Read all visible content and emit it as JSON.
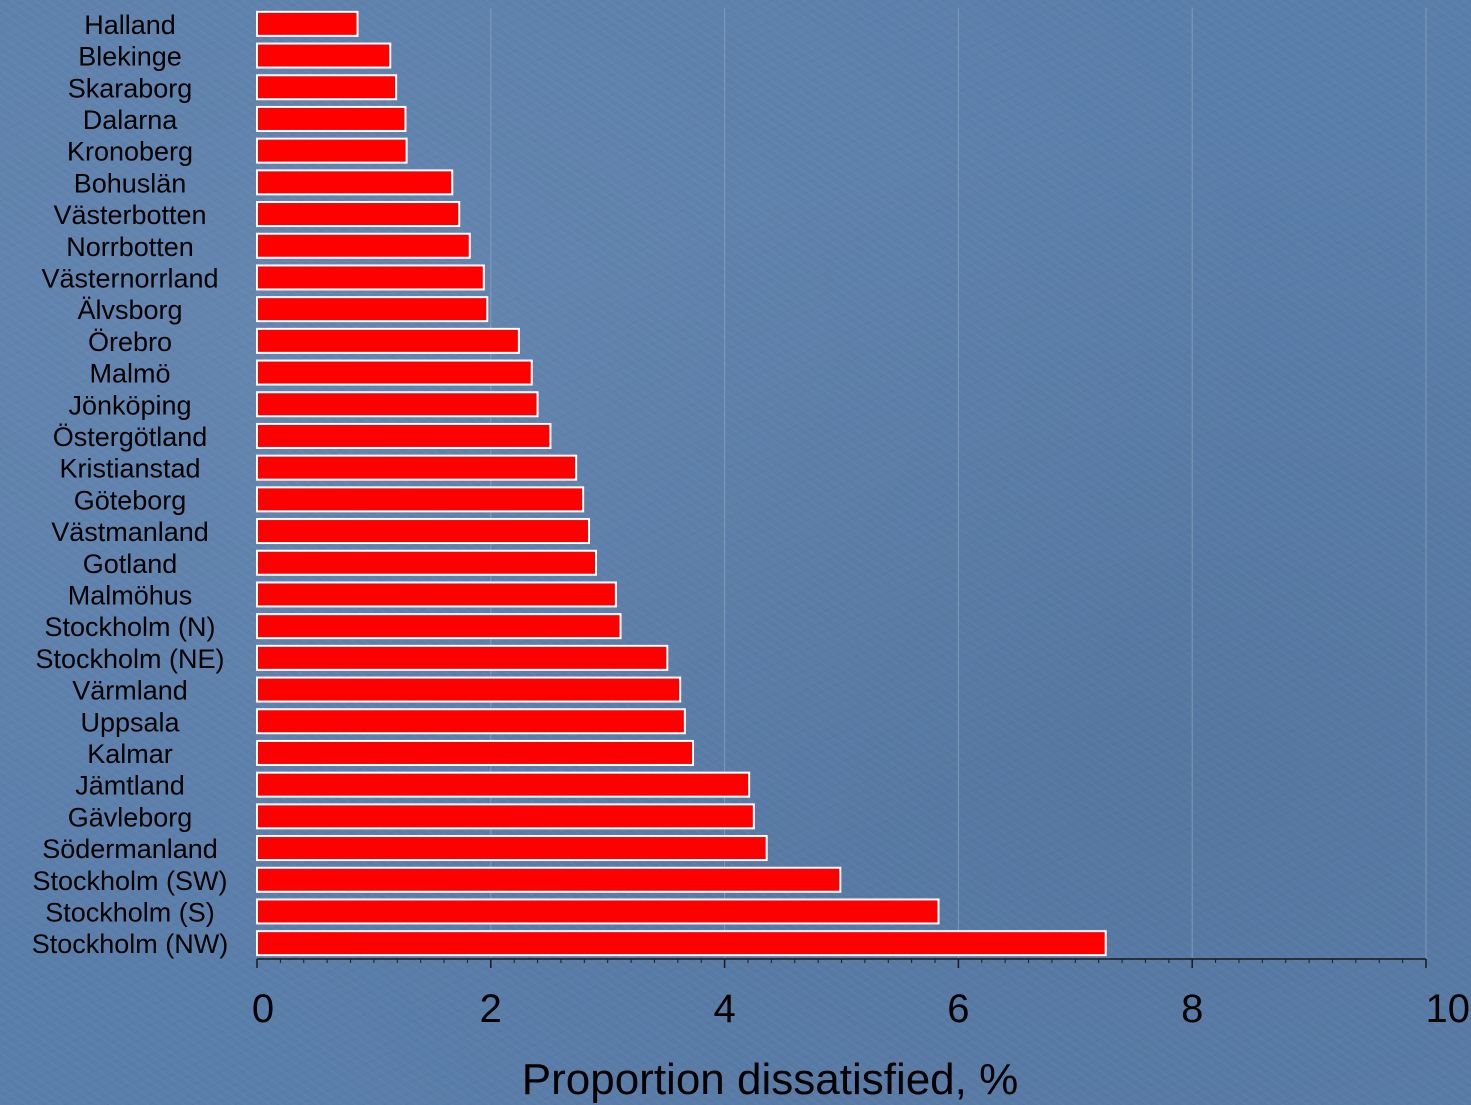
{
  "chart_data": {
    "type": "bar",
    "orientation": "horizontal",
    "categories": [
      "Halland",
      "Blekinge",
      "Skaraborg",
      "Dalarna",
      "Kronoberg",
      "Bohuslän",
      "Västerbotten",
      "Norrbotten",
      "Västernorrland",
      "Älvsborg",
      "Örebro",
      "Malmö",
      "Jönköping",
      "Östergötland",
      "Kristianstad",
      "Göteborg",
      "Västmanland",
      "Gotland",
      "Malmöhus",
      "Stockholm (N)",
      "Stockholm (NE)",
      "Värmland",
      "Uppsala",
      "Kalmar",
      "Jämtland",
      "Gävleborg",
      "Södermanland",
      "Stockholm (SW)",
      "Stockholm (S)",
      "Stockholm (NW)"
    ],
    "values": [
      0.86,
      1.14,
      1.19,
      1.27,
      1.28,
      1.67,
      1.73,
      1.82,
      1.94,
      1.97,
      2.24,
      2.35,
      2.4,
      2.51,
      2.73,
      2.79,
      2.84,
      2.9,
      3.07,
      3.11,
      3.51,
      3.62,
      3.66,
      3.73,
      4.21,
      4.25,
      4.36,
      4.99,
      5.83,
      7.26
    ],
    "xlabel": "Proportion dissatisfied, %",
    "ylabel": "",
    "title": "",
    "xlim": [
      0,
      10
    ],
    "xticks": [
      "0",
      "2",
      "4",
      "6",
      "8",
      "10"
    ],
    "grid": "vertical",
    "legend": "none",
    "bar_color": "#ff0000",
    "bar_border_color": "#ffffff",
    "background_color": "#5a7eaa"
  }
}
